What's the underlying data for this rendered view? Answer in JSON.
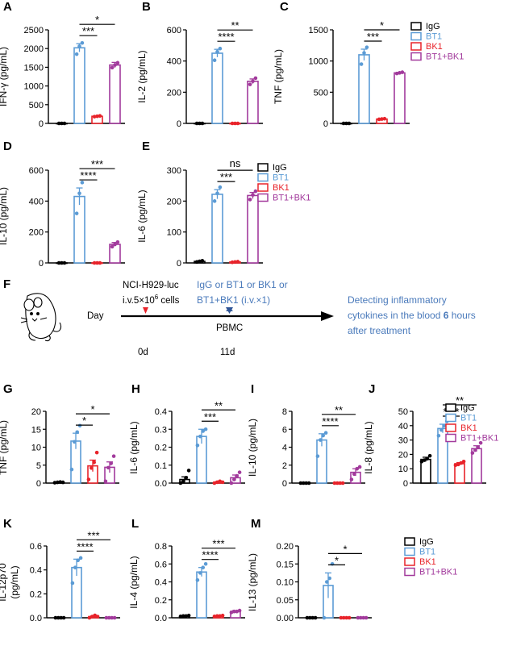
{
  "colors": {
    "IgG": "#000000",
    "BT1": "#5b9bd5",
    "BK1": "#e8232a",
    "BT1+BK1": "#a23a9c",
    "arrow_red": "#e8232a",
    "arrow_blue": "#2f5597",
    "text_blue": "#4a7abb"
  },
  "legend": {
    "groups": [
      "IgG",
      "BT1",
      "BK1",
      "BT1+BK1"
    ]
  },
  "chart_data": [
    {
      "id": "A",
      "type": "bar",
      "letter": "A",
      "ylabel": "IFN-γ (pg/mL)",
      "ylim": [
        0,
        2500
      ],
      "yticks": [
        0,
        500,
        1000,
        1500,
        2000,
        2500
      ],
      "categories": [
        "IgG",
        "BT1",
        "BK1",
        "BT1+BK1"
      ],
      "values": [
        0,
        2020,
        190,
        1560
      ],
      "errors": [
        0,
        110,
        8,
        70
      ],
      "points": [
        [
          0,
          0,
          0
        ],
        [
          1850,
          2060,
          2150
        ],
        [
          180,
          190,
          200
        ],
        [
          1490,
          1560,
          1620
        ]
      ],
      "significance": [
        {
          "groups": [
            1,
            3
          ],
          "label": "*"
        },
        {
          "groups": [
            1,
            2
          ],
          "label": "***"
        }
      ]
    },
    {
      "id": "B",
      "type": "bar",
      "letter": "B",
      "ylabel": "IL-2 (pg/mL)",
      "ylim": [
        0,
        600
      ],
      "yticks": [
        0,
        200,
        400,
        600
      ],
      "categories": [
        "IgG",
        "BT1",
        "BK1",
        "BT1+BK1"
      ],
      "values": [
        0,
        450,
        0,
        270
      ],
      "errors": [
        0,
        25,
        0,
        15
      ],
      "points": [
        [
          0,
          0,
          0
        ],
        [
          405,
          460,
          480
        ],
        [
          0,
          0,
          0
        ],
        [
          250,
          270,
          290
        ]
      ],
      "significance": [
        {
          "groups": [
            1,
            3
          ],
          "label": "**"
        },
        {
          "groups": [
            1,
            2
          ],
          "label": "****"
        }
      ]
    },
    {
      "id": "C",
      "type": "bar",
      "letter": "C",
      "ylabel": "TNF (pg/mL)",
      "ylim": [
        0,
        1500
      ],
      "yticks": [
        0,
        500,
        1000,
        1500
      ],
      "categories": [
        "IgG",
        "BT1",
        "BK1",
        "BT1+BK1"
      ],
      "values": [
        0,
        1100,
        70,
        810
      ],
      "errors": [
        0,
        90,
        6,
        8
      ],
      "points": [
        [
          0,
          0,
          0
        ],
        [
          950,
          1130,
          1220
        ],
        [
          65,
          70,
          75
        ],
        [
          800,
          810,
          820
        ]
      ],
      "significance": [
        {
          "groups": [
            1,
            3
          ],
          "label": "*"
        },
        {
          "groups": [
            1,
            2
          ],
          "label": "***"
        }
      ]
    },
    {
      "id": "D",
      "type": "bar",
      "letter": "D",
      "ylabel": "IL-10 (pg/mL)",
      "ylim": [
        0,
        600
      ],
      "yticks": [
        0,
        200,
        400,
        600
      ],
      "categories": [
        "IgG",
        "BT1",
        "BK1",
        "BT1+BK1"
      ],
      "values": [
        0,
        430,
        0,
        120
      ],
      "errors": [
        0,
        55,
        0,
        12
      ],
      "points": [
        [
          0,
          0,
          0
        ],
        [
          320,
          450,
          520
        ],
        [
          0,
          0,
          0
        ],
        [
          105,
          120,
          135
        ]
      ],
      "significance": [
        {
          "groups": [
            1,
            3
          ],
          "label": "***"
        },
        {
          "groups": [
            1,
            2
          ],
          "label": "****"
        }
      ]
    },
    {
      "id": "E",
      "type": "bar",
      "letter": "E",
      "ylabel": "IL-6 (pg/mL)",
      "ylim": [
        0,
        300
      ],
      "yticks": [
        0,
        100,
        200,
        300
      ],
      "categories": [
        "IgG",
        "BT1",
        "BK1",
        "BT1+BK1"
      ],
      "values": [
        5,
        222,
        3,
        218
      ],
      "errors": [
        2,
        15,
        1,
        10
      ],
      "points": [
        [
          3,
          5,
          7
        ],
        [
          200,
          225,
          245
        ],
        [
          2,
          3,
          4
        ],
        [
          205,
          220,
          232
        ]
      ],
      "significance": [
        {
          "groups": [
            1,
            3
          ],
          "label": "ns"
        },
        {
          "groups": [
            1,
            2
          ],
          "label": "***"
        }
      ]
    },
    {
      "id": "G",
      "type": "bar",
      "letter": "G",
      "ylabel": "TNF (pg/mL)",
      "ylim": [
        0,
        20
      ],
      "yticks": [
        0,
        5,
        10,
        15,
        20
      ],
      "categories": [
        "IgG",
        "BT1",
        "BK1",
        "BT1+BK1"
      ],
      "values": [
        0.2,
        11.7,
        4.8,
        4.4
      ],
      "errors": [
        0.1,
        2.2,
        1.6,
        1.5
      ],
      "points": [
        [
          0.1,
          0.2,
          0.3,
          0.2
        ],
        [
          3.8,
          11.5,
          14.2,
          16.0
        ],
        [
          1.0,
          4.2,
          5.8,
          8.5
        ],
        [
          0.5,
          4.3,
          5.5,
          7.5
        ]
      ],
      "significance": [
        {
          "groups": [
            1,
            3
          ],
          "label": "*"
        },
        {
          "groups": [
            1,
            2
          ],
          "label": "*"
        }
      ]
    },
    {
      "id": "H",
      "type": "bar",
      "letter": "H",
      "ylabel": "IL-6 (pg/mL)",
      "ylim": [
        0,
        0.4
      ],
      "yticks": [
        0.0,
        0.1,
        0.2,
        0.3,
        0.4
      ],
      "categories": [
        "IgG",
        "BT1",
        "BK1",
        "BT1+BK1"
      ],
      "values": [
        0.02,
        0.26,
        0.005,
        0.03
      ],
      "errors": [
        0.015,
        0.04,
        0.003,
        0.015
      ],
      "points": [
        [
          0.0,
          0.01,
          0.03,
          0.07
        ],
        [
          0.21,
          0.26,
          0.29,
          0.3
        ],
        [
          0.0,
          0.005,
          0.01,
          0.005
        ],
        [
          0.0,
          0.02,
          0.04,
          0.06
        ]
      ],
      "significance": [
        {
          "groups": [
            1,
            3
          ],
          "label": "**"
        },
        {
          "groups": [
            1,
            2
          ],
          "label": "***"
        }
      ]
    },
    {
      "id": "I",
      "type": "bar",
      "letter": "I",
      "ylabel": "IL-10 (pg/mL)",
      "ylim": [
        0,
        8
      ],
      "yticks": [
        0,
        2,
        4,
        6,
        8
      ],
      "categories": [
        "IgG",
        "BT1",
        "BK1",
        "BT1+BK1"
      ],
      "values": [
        0,
        4.8,
        0,
        1.2
      ],
      "errors": [
        0,
        0.7,
        0,
        0.4
      ],
      "points": [
        [
          0,
          0,
          0,
          0
        ],
        [
          3.0,
          4.8,
          5.3,
          5.6
        ],
        [
          0,
          0,
          0,
          0
        ],
        [
          0.4,
          1.0,
          1.6,
          1.8
        ]
      ],
      "significance": [
        {
          "groups": [
            1,
            3
          ],
          "label": "**"
        },
        {
          "groups": [
            1,
            2
          ],
          "label": "****"
        }
      ]
    },
    {
      "id": "J",
      "type": "bar",
      "letter": "J",
      "ylabel": "IL-8 (pg/mL)",
      "ylim": [
        0,
        50
      ],
      "yticks": [
        0,
        10,
        20,
        30,
        40,
        50
      ],
      "categories": [
        "IgG",
        "BT1",
        "BK1",
        "BT1+BK1"
      ],
      "values": [
        16.5,
        38,
        13.5,
        24
      ],
      "errors": [
        1.5,
        3,
        0.8,
        2
      ],
      "points": [
        [
          15,
          16,
          17,
          19
        ],
        [
          33,
          37,
          40,
          43
        ],
        [
          12.5,
          13,
          14,
          15
        ],
        [
          21,
          23,
          25,
          28
        ]
      ],
      "significance": [
        {
          "groups": [
            1,
            3
          ],
          "label": "**"
        },
        {
          "groups": [
            1,
            2
          ],
          "label": "****"
        }
      ]
    },
    {
      "id": "K",
      "type": "bar",
      "letter": "K",
      "ylabel": "IL-12p70",
      "ylabel2": "(pg/mL)",
      "ylim": [
        0,
        0.6
      ],
      "yticks": [
        0.0,
        0.2,
        0.4,
        0.6
      ],
      "categories": [
        "IgG",
        "BT1",
        "BK1",
        "BT1+BK1"
      ],
      "values": [
        0,
        0.42,
        0.01,
        0
      ],
      "errors": [
        0,
        0.07,
        0.005,
        0
      ],
      "points": [
        [
          0,
          0,
          0,
          0
        ],
        [
          0.29,
          0.42,
          0.48,
          0.5
        ],
        [
          0.0,
          0.01,
          0.02,
          0.01
        ],
        [
          0,
          0,
          0,
          0
        ]
      ],
      "significance": [
        {
          "groups": [
            1,
            3
          ],
          "label": "***"
        },
        {
          "groups": [
            1,
            2
          ],
          "label": "****"
        }
      ]
    },
    {
      "id": "L",
      "type": "bar",
      "letter": "L",
      "ylabel": "IL-4 (pg/mL)",
      "ylim": [
        0,
        0.8
      ],
      "yticks": [
        0.0,
        0.2,
        0.4,
        0.6,
        0.8
      ],
      "categories": [
        "IgG",
        "BT1",
        "BK1",
        "BT1+BK1"
      ],
      "values": [
        0.02,
        0.51,
        0.02,
        0.07
      ],
      "errors": [
        0.005,
        0.05,
        0.004,
        0.01
      ],
      "points": [
        [
          0.015,
          0.02,
          0.02,
          0.025
        ],
        [
          0.42,
          0.5,
          0.56,
          0.6
        ],
        [
          0.015,
          0.02,
          0.02,
          0.025
        ],
        [
          0.06,
          0.07,
          0.07,
          0.08
        ]
      ],
      "significance": [
        {
          "groups": [
            1,
            3
          ],
          "label": "***"
        },
        {
          "groups": [
            1,
            2
          ],
          "label": "****"
        }
      ]
    },
    {
      "id": "M",
      "type": "bar",
      "letter": "M",
      "ylabel": "IL-13 (pg/mL)",
      "ylim": [
        0,
        0.2
      ],
      "yticks": [
        0.0,
        0.05,
        0.1,
        0.15,
        0.2
      ],
      "categories": [
        "IgG",
        "BT1",
        "BK1",
        "BT1+BK1"
      ],
      "values": [
        0,
        0.09,
        0,
        0
      ],
      "errors": [
        0,
        0.035,
        0,
        0
      ],
      "points": [
        [
          0,
          0,
          0,
          0
        ],
        [
          0.0,
          0.1,
          0.11,
          0.15
        ],
        [
          0,
          0,
          0,
          0
        ],
        [
          0,
          0,
          0,
          0
        ]
      ],
      "significance": [
        {
          "groups": [
            1,
            3
          ],
          "label": "*"
        },
        {
          "groups": [
            1,
            2
          ],
          "label": "*"
        }
      ]
    }
  ],
  "schematic": {
    "letter": "F",
    "cell_line": "NCI-H929-luc",
    "injection_prefix": "i.v.5×10",
    "injection_exponent": "6",
    "injection_suffix": " cells",
    "day_label": "Day",
    "treatment_line1": "IgG or BT1 or BK1 or",
    "treatment_line2": "BT1+BK1 (i.v.×1)",
    "pbmc_label": "PBMC",
    "day0": "0d",
    "day11": "11d",
    "detect_line1": "Detecting inflammatory",
    "detect_line2": "cytokines in the blood ",
    "detect_hours": "6",
    "detect_line2_end": " hours",
    "detect_line3": "after treatment"
  }
}
